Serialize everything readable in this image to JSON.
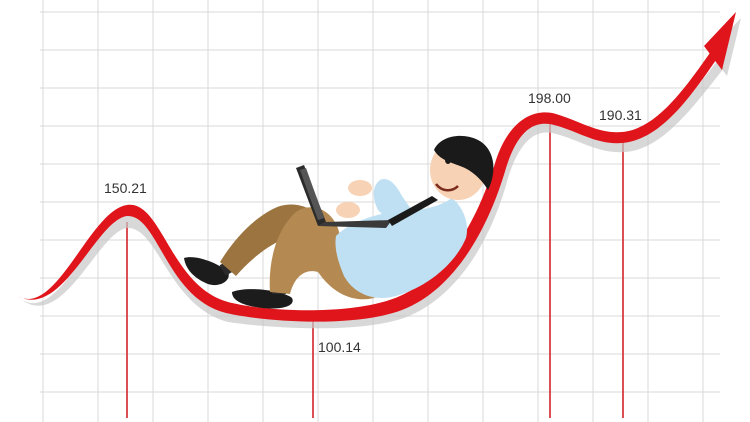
{
  "colors": {
    "background": "#ffffff",
    "grid": "#d9d9d9",
    "curve": "#e0151b",
    "curve_shadow": "#c8c8c8",
    "drop_line": "#d4242a",
    "shirt": "#bfe0f3",
    "pants": "#b58a52",
    "hair": "#1a1a1a",
    "skin": "#f7d2b4",
    "laptop": "#2b2b2b",
    "shoes": "#1c1c1c"
  },
  "points": [
    {
      "label": "150.21"
    },
    {
      "label": "100.14"
    },
    {
      "label": "198.00"
    },
    {
      "label": "190.31"
    }
  ],
  "icons": {
    "arrow": "up-right-arrow-icon"
  }
}
